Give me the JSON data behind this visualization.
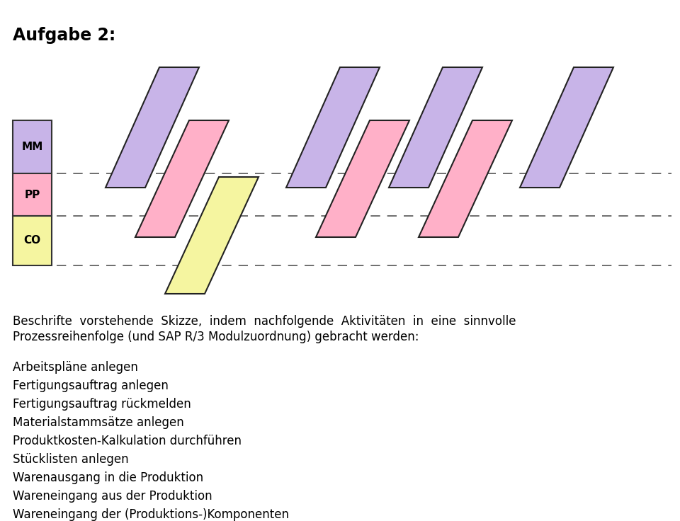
{
  "title": "Aufgabe 2:",
  "bg_color": "#ffffff",
  "row_labels": [
    "MM",
    "PP",
    "CO"
  ],
  "row_colors": [
    "#c8b4e8",
    "#ffb0c8",
    "#f5f5a0"
  ],
  "para_color_mm": "#c8b4e8",
  "para_color_pp": "#ffb0c8",
  "para_color_co": "#f5f5a0",
  "para_outline": "#222222",
  "description_line1": "Beschrifte  vorstehende  Skizze,  indem  nachfolgende  Aktivitäten  in  eine  sinnvolle",
  "description_line2": "Prozessreihenfolge (und SAP R/3 Modulzuordnung) gebracht werden:",
  "list_items": [
    "Arbeitspläne anlegen",
    "Fertigungsauftrag anlegen",
    "Fertigungsauftrag rückmelden",
    "Materialstammsätze anlegen",
    "Produktkosten-Kalkulation durchführen",
    "Stücklisten anlegen",
    "Warenausgang in die Produktion",
    "Wareneingang aus der Produktion",
    "Wareneingang der (Produktions-)Komponenten"
  ]
}
